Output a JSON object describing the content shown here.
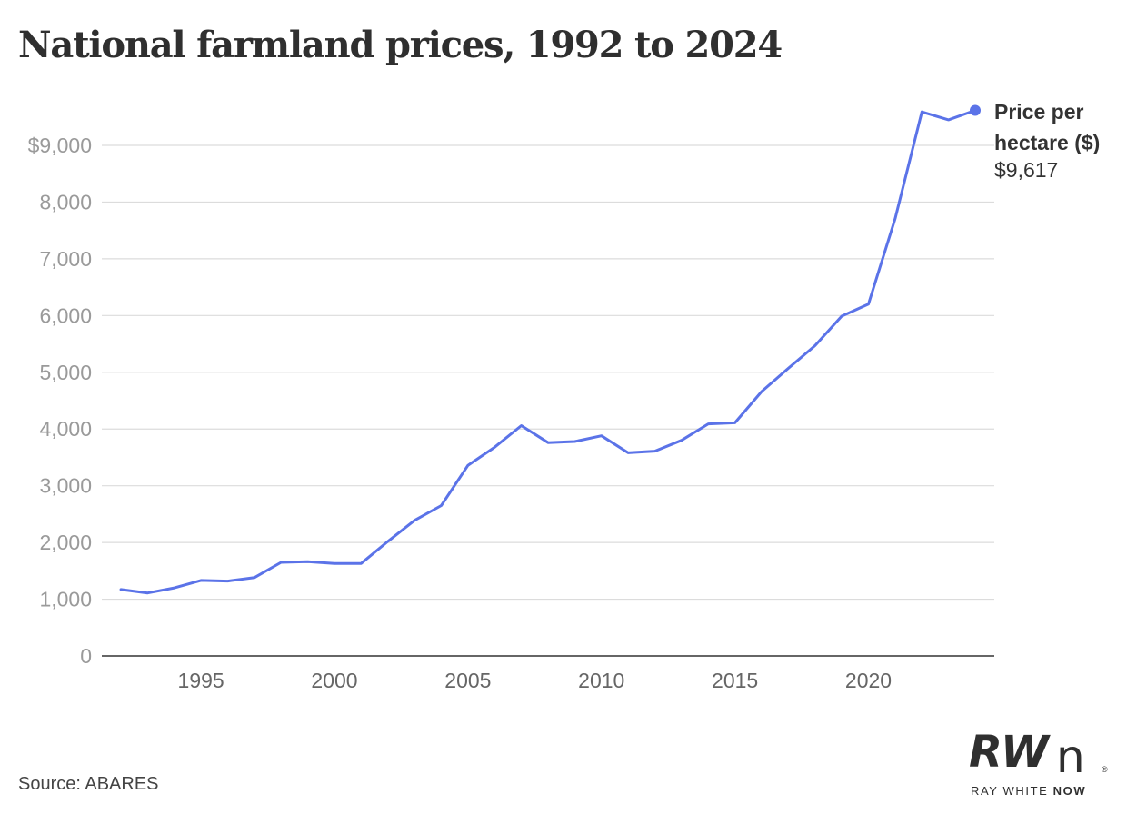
{
  "title": "National farmland prices, 1992 to 2024",
  "source": "Source: ABARES",
  "logo": {
    "mark": "RWn",
    "text_plain": "RAY WHITE ",
    "text_bold": "NOW"
  },
  "colors": {
    "series": "#5b73e8",
    "grid": "#dcdcdc",
    "axis_text": "#9a9a9a",
    "label_text": "#333333"
  },
  "chart_data": {
    "type": "line",
    "title": "National farmland prices, 1992 to 2024",
    "xlabel": "",
    "ylabel": "",
    "xlim": [
      1992,
      2024
    ],
    "ylim": [
      0,
      9617
    ],
    "x_ticks": [
      1995,
      2000,
      2005,
      2010,
      2015,
      2020
    ],
    "y_ticks": [
      {
        "value": 0,
        "label": "0"
      },
      {
        "value": 1000,
        "label": "1,000"
      },
      {
        "value": 2000,
        "label": "2,000"
      },
      {
        "value": 3000,
        "label": "3,000"
      },
      {
        "value": 4000,
        "label": "4,000"
      },
      {
        "value": 5000,
        "label": "5,000"
      },
      {
        "value": 6000,
        "label": "6,000"
      },
      {
        "value": 7000,
        "label": "7,000"
      },
      {
        "value": 8000,
        "label": "8,000"
      },
      {
        "value": 9000,
        "label": "$9,000"
      }
    ],
    "grid": true,
    "series": [
      {
        "name": "Price per hectare ($)",
        "end_label": "$9,617",
        "x": [
          1992,
          1993,
          1994,
          1995,
          1996,
          1997,
          1998,
          1999,
          2000,
          2001,
          2002,
          2003,
          2004,
          2005,
          2006,
          2007,
          2008,
          2009,
          2010,
          2011,
          2012,
          2013,
          2014,
          2015,
          2016,
          2017,
          2018,
          2019,
          2020,
          2021,
          2022,
          2023,
          2024
        ],
        "values": [
          1170,
          1110,
          1200,
          1330,
          1320,
          1380,
          1650,
          1660,
          1630,
          1630,
          2020,
          2390,
          2650,
          3360,
          3680,
          4060,
          3760,
          3780,
          3880,
          3580,
          3610,
          3800,
          4090,
          4110,
          4660,
          5070,
          5470,
          5990,
          6200,
          7710,
          9590,
          9450,
          9617
        ]
      }
    ]
  }
}
